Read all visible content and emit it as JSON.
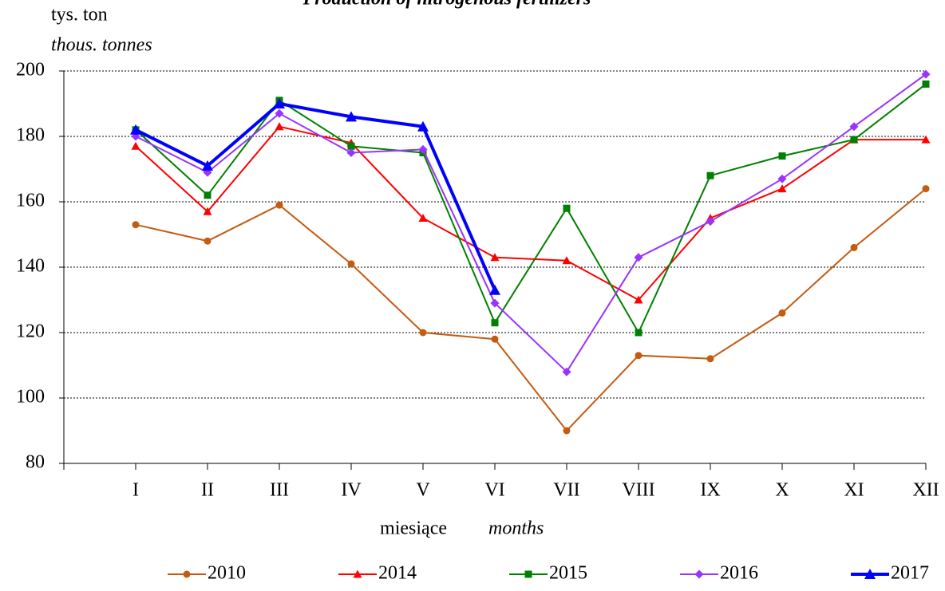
{
  "chart_data": {
    "type": "line",
    "title": "Production of nitrogenous fertilizers",
    "y_label": "tys. ton",
    "y_label_en": "thous. tonnes",
    "x_label": "miesiące",
    "x_label_en": "months",
    "categories": [
      "I",
      "II",
      "III",
      "IV",
      "V",
      "VI",
      "VII",
      "VIII",
      "IX",
      "X",
      "XI",
      "XII"
    ],
    "ylim": [
      80,
      200
    ],
    "yticks": [
      80,
      100,
      120,
      140,
      160,
      180,
      200
    ],
    "grid": true,
    "legend": "bottom",
    "series": [
      {
        "name": "2010",
        "color": "#c55a11",
        "marker": "circle",
        "values": [
          153,
          148,
          159,
          141,
          120,
          118,
          90,
          113,
          112,
          126,
          146,
          164
        ]
      },
      {
        "name": "2014",
        "color": "#ff0000",
        "marker": "triangle",
        "values": [
          177,
          157,
          183,
          178,
          155,
          143,
          142,
          130,
          155,
          164,
          179,
          179
        ]
      },
      {
        "name": "2015",
        "color": "#008000",
        "marker": "square",
        "values": [
          182,
          162,
          191,
          177,
          175,
          123,
          158,
          120,
          168,
          174,
          179,
          196
        ]
      },
      {
        "name": "2016",
        "color": "#9933ff",
        "marker": "diamond",
        "values": [
          180,
          169,
          187,
          175,
          176,
          129,
          108,
          143,
          154,
          167,
          183,
          199
        ]
      },
      {
        "name": "2017",
        "color": "#0000ff",
        "marker": "triangle",
        "width": 4,
        "values": [
          182,
          171,
          190,
          186,
          183,
          133,
          null,
          null,
          null,
          null,
          null,
          null
        ]
      }
    ]
  }
}
